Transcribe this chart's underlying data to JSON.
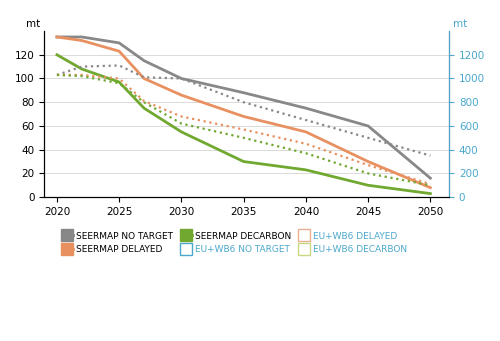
{
  "years": [
    2020,
    2022,
    2025,
    2027,
    2030,
    2035,
    2040,
    2045,
    2050
  ],
  "seermap_no_target": [
    135,
    135,
    130,
    115,
    100,
    88,
    75,
    60,
    16
  ],
  "seermap_delayed": [
    135,
    132,
    123,
    100,
    86,
    68,
    55,
    30,
    8
  ],
  "seermap_decarbon": [
    120,
    108,
    97,
    75,
    55,
    30,
    23,
    10,
    3
  ],
  "eu_wb6_no_target": [
    103,
    110,
    111,
    101,
    100,
    80,
    65,
    50,
    35
  ],
  "eu_wb6_delayed": [
    103,
    103,
    100,
    81,
    68,
    57,
    45,
    27,
    11
  ],
  "eu_wb6_decarbon": [
    103,
    102,
    96,
    80,
    62,
    50,
    37,
    20,
    10
  ],
  "left_ylim": [
    0,
    140
  ],
  "right_ylim": [
    0,
    1400
  ],
  "left_yticks": [
    0,
    20,
    40,
    60,
    80,
    100,
    120
  ],
  "right_yticks": [
    0,
    200,
    400,
    600,
    800,
    1000,
    1200
  ],
  "xticks": [
    2020,
    2025,
    2030,
    2035,
    2040,
    2045,
    2050
  ],
  "xlim": [
    2019.0,
    2051.5
  ],
  "color_gray": "#888888",
  "color_orange": "#E89060",
  "color_green": "#70A830",
  "color_blue": "#4BA8CC",
  "bg_color": "#FFFFFF",
  "grid_color": "#CCCCCC",
  "lw_solid": 2.0,
  "lw_dotted": 1.6,
  "left_ylabel": "mt",
  "right_ylabel": "mt"
}
